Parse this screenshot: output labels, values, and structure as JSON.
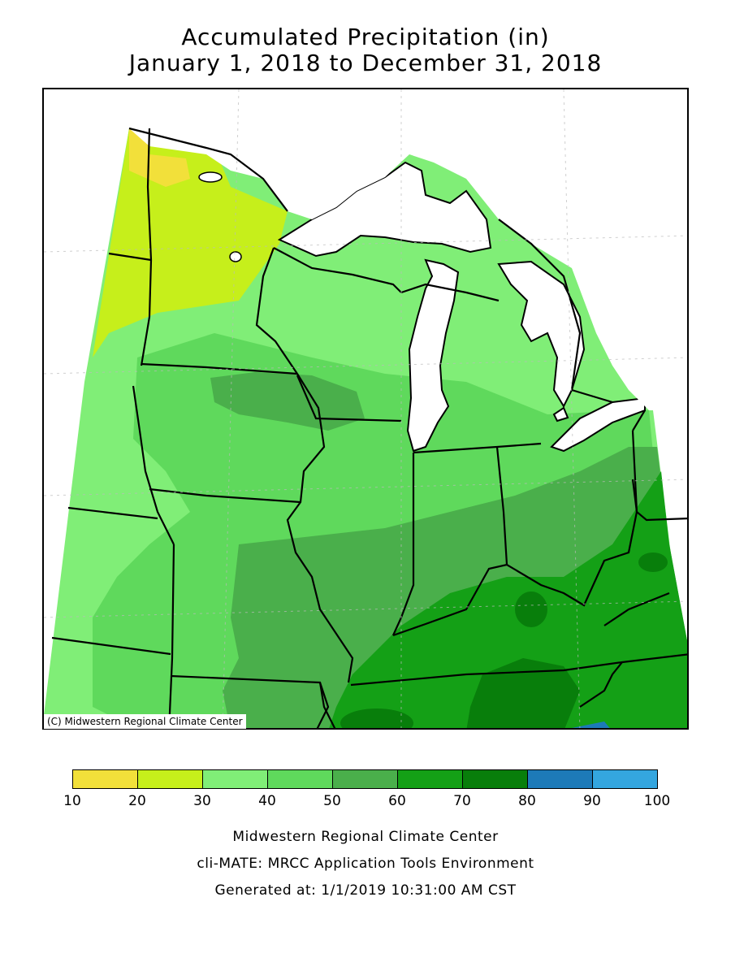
{
  "title": {
    "line1": "Accumulated Precipitation (in)",
    "line2": "January 1, 2018 to December 31, 2018"
  },
  "map": {
    "copyright": "(C) Midwestern Regional Climate Center",
    "region": "Upper Midwest and Ohio Valley"
  },
  "legend": {
    "ticks": [
      "10",
      "20",
      "30",
      "40",
      "50",
      "60",
      "70",
      "80",
      "90",
      "100"
    ],
    "bins": [
      {
        "min": 10,
        "max": 20,
        "color": "#f2e03a"
      },
      {
        "min": 20,
        "max": 30,
        "color": "#c6ef1b"
      },
      {
        "min": 30,
        "max": 40,
        "color": "#80ee77"
      },
      {
        "min": 40,
        "max": 50,
        "color": "#5fd95c"
      },
      {
        "min": 50,
        "max": 60,
        "color": "#4aaf4b"
      },
      {
        "min": 60,
        "max": 70,
        "color": "#14a016"
      },
      {
        "min": 70,
        "max": 80,
        "color": "#087e0b"
      },
      {
        "min": 80,
        "max": 90,
        "color": "#1d7ab8"
      },
      {
        "min": 90,
        "max": 100,
        "color": "#34a6df"
      }
    ]
  },
  "credits": {
    "line1": "Midwestern Regional Climate Center",
    "line2": "cli-MATE: MRCC Application Tools Environment",
    "line3": "Generated at: 1/1/2019 10:31:00 AM CST"
  }
}
